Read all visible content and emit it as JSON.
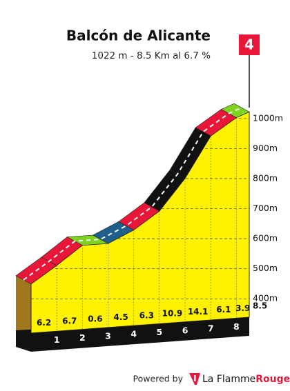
{
  "chart_data": {
    "type": "climb-profile",
    "title": "Balcón de Alicante",
    "subtitle": "1022 m - 8.5 Km al 6.7 %",
    "category_badge": "4",
    "x": [
      0,
      1,
      2,
      3,
      4,
      5,
      6,
      7,
      8,
      8.5
    ],
    "values": [
      449,
      511,
      578,
      584,
      629,
      692,
      801,
      942,
      1003,
      1022
    ],
    "gradients": [
      6.2,
      6.7,
      0.6,
      4.5,
      6.3,
      10.9,
      14.1,
      6.1,
      3.9
    ],
    "gradient_colors": [
      "#e8173a",
      "#e8173a",
      "#7ed321",
      "#1e5f8c",
      "#e8173a",
      "#111111",
      "#111111",
      "#e8173a",
      "#7ed321"
    ],
    "face_color": "#fff200",
    "xlim": [
      0,
      8.5
    ],
    "xticks": [
      1,
      2,
      3,
      4,
      5,
      6,
      7,
      8,
      8.5
    ],
    "ylim": [
      350,
      1050
    ],
    "yticks": [
      {
        "value": 400,
        "label": "400m"
      },
      {
        "value": 500,
        "label": "500m"
      },
      {
        "value": 600,
        "label": "600m"
      },
      {
        "value": 700,
        "label": "700m"
      },
      {
        "value": 800,
        "label": "800m"
      },
      {
        "value": 900,
        "label": "900m"
      },
      {
        "value": 1000,
        "label": "1000m"
      }
    ],
    "grid": true,
    "footer": {
      "powered_by": "Powered by",
      "brand": "La Flamme",
      "brand_accent": "Rouge"
    }
  }
}
